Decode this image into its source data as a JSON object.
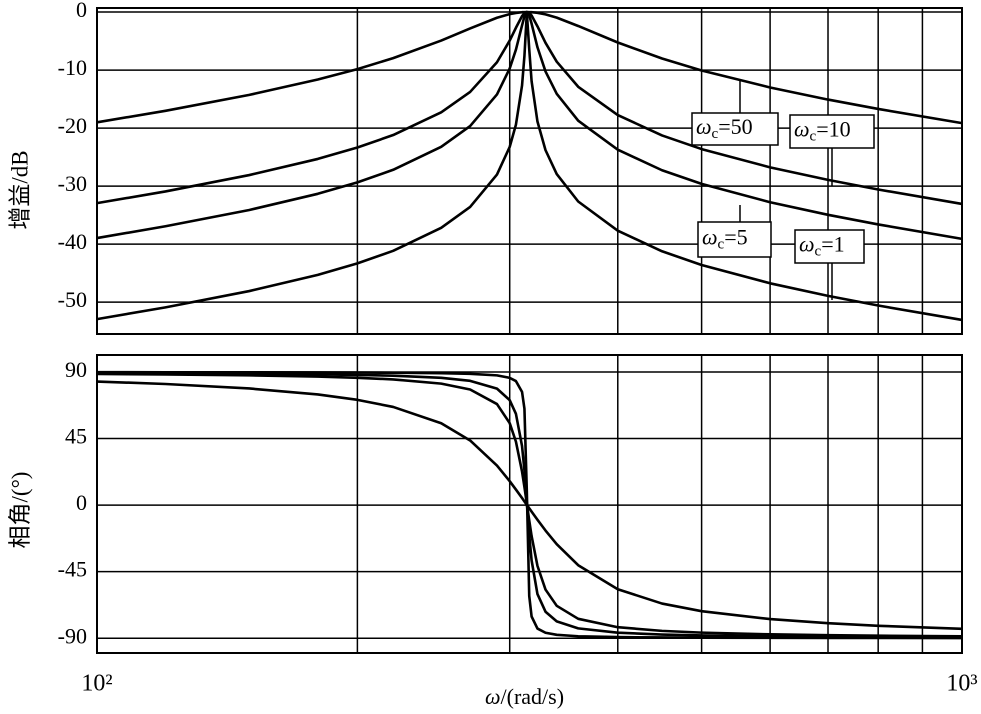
{
  "chart_data": [
    {
      "type": "line",
      "y_label": "增益/dB",
      "log_x": true,
      "grid": true,
      "xlim": [
        100,
        1000
      ],
      "xgrid": [
        200,
        300,
        400,
        500,
        600,
        700,
        800,
        900
      ],
      "ylim": [
        -55.5,
        0.7
      ],
      "yticks": [
        0,
        -10,
        -20,
        -30,
        -40,
        -50
      ],
      "x": [
        100,
        120,
        150,
        180,
        200,
        220,
        250,
        270,
        290,
        300,
        305,
        310,
        312,
        314,
        316,
        318,
        323,
        330,
        340,
        360,
        400,
        450,
        500,
        600,
        700,
        800,
        1000
      ],
      "series": [
        {
          "label": {
            "symbol": "ω",
            "sub": "c",
            "rest": "=50"
          },
          "color": "#000000",
          "values": [
            -19.01,
            -17.02,
            -14.28,
            -11.63,
            -9.83,
            -7.94,
            -4.91,
            -2.82,
            -0.98,
            -0.35,
            -0.15,
            -0.03,
            -0.01,
            0.0,
            -0.01,
            -0.03,
            -0.13,
            -0.4,
            -0.96,
            -2.4,
            -5.25,
            -8.01,
            -10.07,
            -13.0,
            -15.09,
            -16.7,
            -19.15
          ]
        },
        {
          "label": {
            "symbol": "ω",
            "sub": "c",
            "rest": "=10"
          },
          "color": "#000000",
          "values": [
            -32.94,
            -30.92,
            -28.1,
            -25.32,
            -23.35,
            -21.2,
            -17.28,
            -13.77,
            -8.65,
            -4.91,
            -2.71,
            -0.7,
            -0.2,
            0.0,
            -0.14,
            -0.59,
            -2.46,
            -5.3,
            -8.56,
            -12.88,
            -17.76,
            -21.27,
            -23.62,
            -26.77,
            -28.93,
            -30.59,
            -33.08
          ]
        },
        {
          "label": {
            "symbol": "ω",
            "sub": "c",
            "rest": "=5"
          },
          "color": "#000000",
          "values": [
            -38.96,
            -36.93,
            -34.12,
            -31.33,
            -29.36,
            -27.19,
            -23.23,
            -19.65,
            -14.2,
            -9.73,
            -6.49,
            -2.31,
            -0.75,
            0.0,
            -0.55,
            -2.0,
            -6.07,
            -10.24,
            -14.1,
            -18.73,
            -23.73,
            -27.27,
            -29.62,
            -32.78,
            -34.95,
            -36.61,
            -39.1
          ]
        },
        {
          "label": {
            "symbol": "ω",
            "sub": "c",
            "rest": "=1"
          },
          "color": "#000000",
          "values": [
            -52.94,
            -50.91,
            -48.1,
            -45.3,
            -43.33,
            -41.16,
            -37.19,
            -33.59,
            -28.02,
            -23.24,
            -19.42,
            -12.68,
            -7.56,
            -0.11,
            -6.4,
            -11.92,
            -18.87,
            -23.8,
            -27.92,
            -32.66,
            -37.69,
            -41.24,
            -43.6,
            -46.76,
            -48.93,
            -50.59,
            -53.08
          ]
        }
      ]
    },
    {
      "type": "line",
      "y_label": "相角/(°)",
      "x_label": {
        "symbol": "ω",
        "rest": "/(rad/s)"
      },
      "log_x": true,
      "grid": true,
      "xlim": [
        100,
        1000
      ],
      "xticks": [
        {
          "value": 100,
          "label": "10²"
        },
        {
          "value": 1000,
          "label": "10³"
        }
      ],
      "xgrid": [
        200,
        300,
        400,
        500,
        600,
        700,
        800,
        900
      ],
      "ylim": [
        -100,
        101.5
      ],
      "yticks": [
        90,
        45,
        0,
        -45,
        -90
      ],
      "x": [
        100,
        120,
        150,
        180,
        200,
        220,
        250,
        270,
        290,
        300,
        305,
        310,
        312,
        314,
        316,
        318,
        323,
        330,
        340,
        360,
        400,
        450,
        500,
        600,
        700,
        800,
        1000
      ],
      "series": [
        {
          "color": "#000000",
          "values": [
            83.57,
            81.9,
            78.86,
            74.81,
            71.18,
            66.38,
            55.37,
            43.7,
            26.72,
            16.17,
            10.53,
            4.79,
            2.48,
            0.18,
            -2.1,
            -4.37,
            -9.89,
            -17.18,
            -26.44,
            -40.64,
            -56.88,
            -66.57,
            -71.72,
            -77.07,
            -79.86,
            -81.59,
            -83.67
          ]
        },
        {
          "color": "#000000",
          "values": [
            88.71,
            88.37,
            87.75,
            86.89,
            86.1,
            85.0,
            82.14,
            78.18,
            68.33,
            55.39,
            42.92,
            22.72,
            12.22,
            0.91,
            -10.4,
            -20.9,
            -41.09,
            -57.11,
            -68.09,
            -76.88,
            -82.57,
            -85.04,
            -86.22,
            -87.37,
            -87.95,
            -88.31,
            -88.73
          ]
        },
        {
          "color": "#000000",
          "values": [
            89.35,
            89.18,
            88.87,
            88.44,
            88.05,
            87.5,
            86.05,
            84.02,
            78.76,
            70.97,
            61.73,
            39.94,
            23.43,
            1.82,
            -20.16,
            -37.36,
            -60.17,
            -72.08,
            -78.63,
            -83.36,
            -86.27,
            -87.52,
            -88.11,
            -88.68,
            -88.98,
            -89.15,
            -89.36
          ]
        },
        {
          "color": "#000000",
          "values": [
            89.87,
            89.84,
            89.77,
            89.69,
            89.61,
            89.5,
            89.21,
            88.8,
            87.72,
            86.05,
            83.86,
            76.57,
            65.22,
            9.05,
            -61.42,
            -75.32,
            -83.46,
            -86.3,
            -87.7,
            -88.67,
            -89.25,
            -89.5,
            -89.62,
            -89.74,
            -89.8,
            -89.83,
            -89.87
          ]
        }
      ]
    }
  ]
}
